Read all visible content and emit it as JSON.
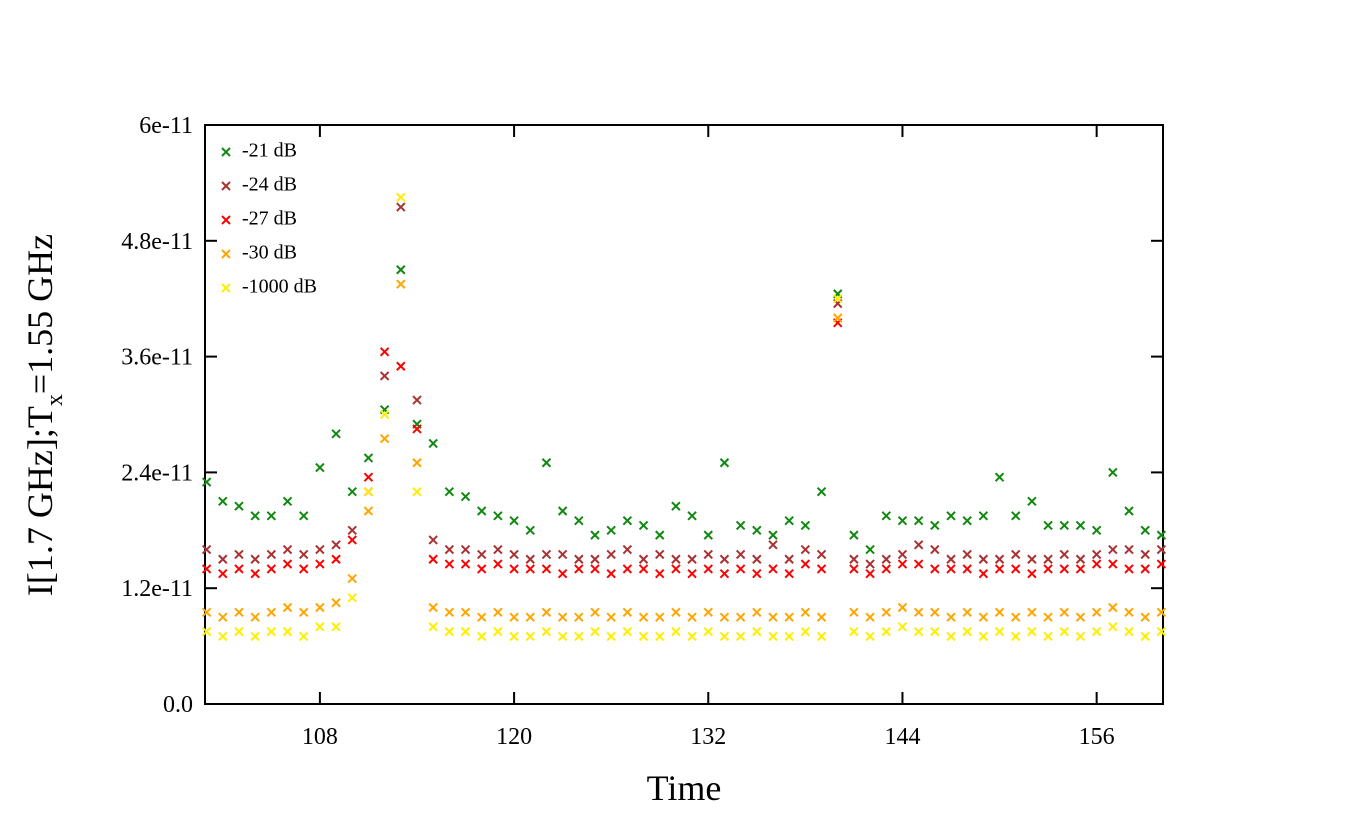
{
  "chart_data": {
    "type": "scatter",
    "xlabel": "Time",
    "ylabel": {
      "text": "I[1.7 GHz];T",
      "subscript": "x",
      "suffix": "=1.55 GHz"
    },
    "xlim": [
      100.9,
      160.1
    ],
    "ylim": [
      0,
      6e-11
    ],
    "xticks": [
      108,
      120,
      132,
      144,
      156
    ],
    "yticks": [
      {
        "value": 0,
        "label": "0.0"
      },
      1.2e-11,
      2.4e-11,
      3.6e-11,
      4.8e-11,
      6e-11
    ],
    "legend": "upper left",
    "x": [
      101,
      102,
      103,
      104,
      105,
      106,
      107,
      108,
      109,
      110,
      111,
      112,
      113,
      114,
      115,
      116,
      117,
      118,
      119,
      120,
      121,
      122,
      123,
      124,
      125,
      126,
      127,
      128,
      129,
      130,
      131,
      132,
      133,
      134,
      135,
      136,
      137,
      138,
      139,
      140,
      141,
      142,
      143,
      144,
      145,
      146,
      147,
      148,
      149,
      150,
      151,
      152,
      153,
      154,
      155,
      156,
      157,
      158,
      159,
      160
    ],
    "series": [
      {
        "name": "-21 dB",
        "color": "#118811",
        "values": [
          2.3e-11,
          2.1e-11,
          2.05e-11,
          1.95e-11,
          1.95e-11,
          2.1e-11,
          1.95e-11,
          2.45e-11,
          2.8e-11,
          2.2e-11,
          2.55e-11,
          3.05e-11,
          4.5e-11,
          2.9e-11,
          2.7e-11,
          2.2e-11,
          2.15e-11,
          2e-11,
          1.95e-11,
          1.9e-11,
          1.8e-11,
          2.5e-11,
          2e-11,
          1.9e-11,
          1.75e-11,
          1.8e-11,
          1.9e-11,
          1.85e-11,
          1.75e-11,
          2.05e-11,
          1.95e-11,
          1.75e-11,
          2.5e-11,
          1.85e-11,
          1.8e-11,
          1.75e-11,
          1.9e-11,
          1.85e-11,
          2.2e-11,
          4.25e-11,
          1.75e-11,
          1.6e-11,
          1.95e-11,
          1.9e-11,
          1.9e-11,
          1.85e-11,
          1.95e-11,
          1.9e-11,
          1.95e-11,
          2.35e-11,
          1.95e-11,
          2.1e-11,
          1.85e-11,
          1.85e-11,
          1.85e-11,
          1.8e-11,
          2.4e-11,
          2e-11,
          1.8e-11,
          1.75e-11
        ]
      },
      {
        "name": "-24 dB",
        "color": "#a83232",
        "values": [
          1.6e-11,
          1.5e-11,
          1.55e-11,
          1.5e-11,
          1.55e-11,
          1.6e-11,
          1.55e-11,
          1.6e-11,
          1.65e-11,
          1.8e-11,
          2.2e-11,
          3.4e-11,
          5.15e-11,
          3.15e-11,
          1.7e-11,
          1.6e-11,
          1.6e-11,
          1.55e-11,
          1.6e-11,
          1.55e-11,
          1.5e-11,
          1.55e-11,
          1.55e-11,
          1.5e-11,
          1.5e-11,
          1.55e-11,
          1.6e-11,
          1.5e-11,
          1.55e-11,
          1.5e-11,
          1.5e-11,
          1.55e-11,
          1.5e-11,
          1.55e-11,
          1.5e-11,
          1.65e-11,
          1.5e-11,
          1.6e-11,
          1.55e-11,
          4.15e-11,
          1.5e-11,
          1.45e-11,
          1.5e-11,
          1.55e-11,
          1.65e-11,
          1.6e-11,
          1.5e-11,
          1.55e-11,
          1.5e-11,
          1.5e-11,
          1.55e-11,
          1.5e-11,
          1.5e-11,
          1.55e-11,
          1.5e-11,
          1.55e-11,
          1.6e-11,
          1.6e-11,
          1.55e-11,
          1.6e-11
        ]
      },
      {
        "name": "-27 dB",
        "color": "#ff0000",
        "values": [
          1.4e-11,
          1.35e-11,
          1.4e-11,
          1.35e-11,
          1.4e-11,
          1.45e-11,
          1.4e-11,
          1.45e-11,
          1.5e-11,
          1.7e-11,
          2.35e-11,
          3.65e-11,
          3.5e-11,
          2.85e-11,
          1.5e-11,
          1.45e-11,
          1.45e-11,
          1.4e-11,
          1.45e-11,
          1.4e-11,
          1.4e-11,
          1.4e-11,
          1.35e-11,
          1.4e-11,
          1.4e-11,
          1.35e-11,
          1.4e-11,
          1.4e-11,
          1.35e-11,
          1.4e-11,
          1.35e-11,
          1.4e-11,
          1.35e-11,
          1.4e-11,
          1.35e-11,
          1.4e-11,
          1.35e-11,
          1.45e-11,
          1.4e-11,
          3.95e-11,
          1.4e-11,
          1.35e-11,
          1.4e-11,
          1.45e-11,
          1.45e-11,
          1.4e-11,
          1.4e-11,
          1.4e-11,
          1.35e-11,
          1.4e-11,
          1.4e-11,
          1.35e-11,
          1.4e-11,
          1.4e-11,
          1.4e-11,
          1.45e-11,
          1.45e-11,
          1.4e-11,
          1.4e-11,
          1.45e-11
        ]
      },
      {
        "name": "-30 dB",
        "color": "#ffa500",
        "values": [
          9.5e-12,
          9e-12,
          9.5e-12,
          9e-12,
          9.5e-12,
          1e-11,
          9.5e-12,
          1e-11,
          1.05e-11,
          1.3e-11,
          2e-11,
          2.75e-11,
          4.35e-11,
          2.5e-11,
          1e-11,
          9.5e-12,
          9.5e-12,
          9e-12,
          9.5e-12,
          9e-12,
          9e-12,
          9.5e-12,
          9e-12,
          9e-12,
          9.5e-12,
          9e-12,
          9.5e-12,
          9e-12,
          9e-12,
          9.5e-12,
          9e-12,
          9.5e-12,
          9e-12,
          9e-12,
          9.5e-12,
          9e-12,
          9e-12,
          9.5e-12,
          9e-12,
          4e-11,
          9.5e-12,
          9e-12,
          9.5e-12,
          1e-11,
          9.5e-12,
          9.5e-12,
          9e-12,
          9.5e-12,
          9e-12,
          9.5e-12,
          9e-12,
          9.5e-12,
          9e-12,
          9.5e-12,
          9e-12,
          9.5e-12,
          1e-11,
          9.5e-12,
          9e-12,
          9.5e-12
        ]
      },
      {
        "name": "-1000 dB",
        "color": "#ffee00",
        "values": [
          7.5e-12,
          7e-12,
          7.5e-12,
          7e-12,
          7.5e-12,
          7.5e-12,
          7e-12,
          8e-12,
          8e-12,
          1.1e-11,
          2.2e-11,
          3e-11,
          5.25e-11,
          2.2e-11,
          8e-12,
          7.5e-12,
          7.5e-12,
          7e-12,
          7.5e-12,
          7e-12,
          7e-12,
          7.5e-12,
          7e-12,
          7e-12,
          7.5e-12,
          7e-12,
          7.5e-12,
          7e-12,
          7e-12,
          7.5e-12,
          7e-12,
          7.5e-12,
          7e-12,
          7e-12,
          7.5e-12,
          7e-12,
          7e-12,
          7.5e-12,
          7e-12,
          4.2e-11,
          7.5e-12,
          7e-12,
          7.5e-12,
          8e-12,
          7.5e-12,
          7.5e-12,
          7e-12,
          7.5e-12,
          7e-12,
          7.5e-12,
          7e-12,
          7.5e-12,
          7e-12,
          7.5e-12,
          7e-12,
          7.5e-12,
          8e-12,
          7.5e-12,
          7e-12,
          7.5e-12
        ]
      }
    ]
  }
}
